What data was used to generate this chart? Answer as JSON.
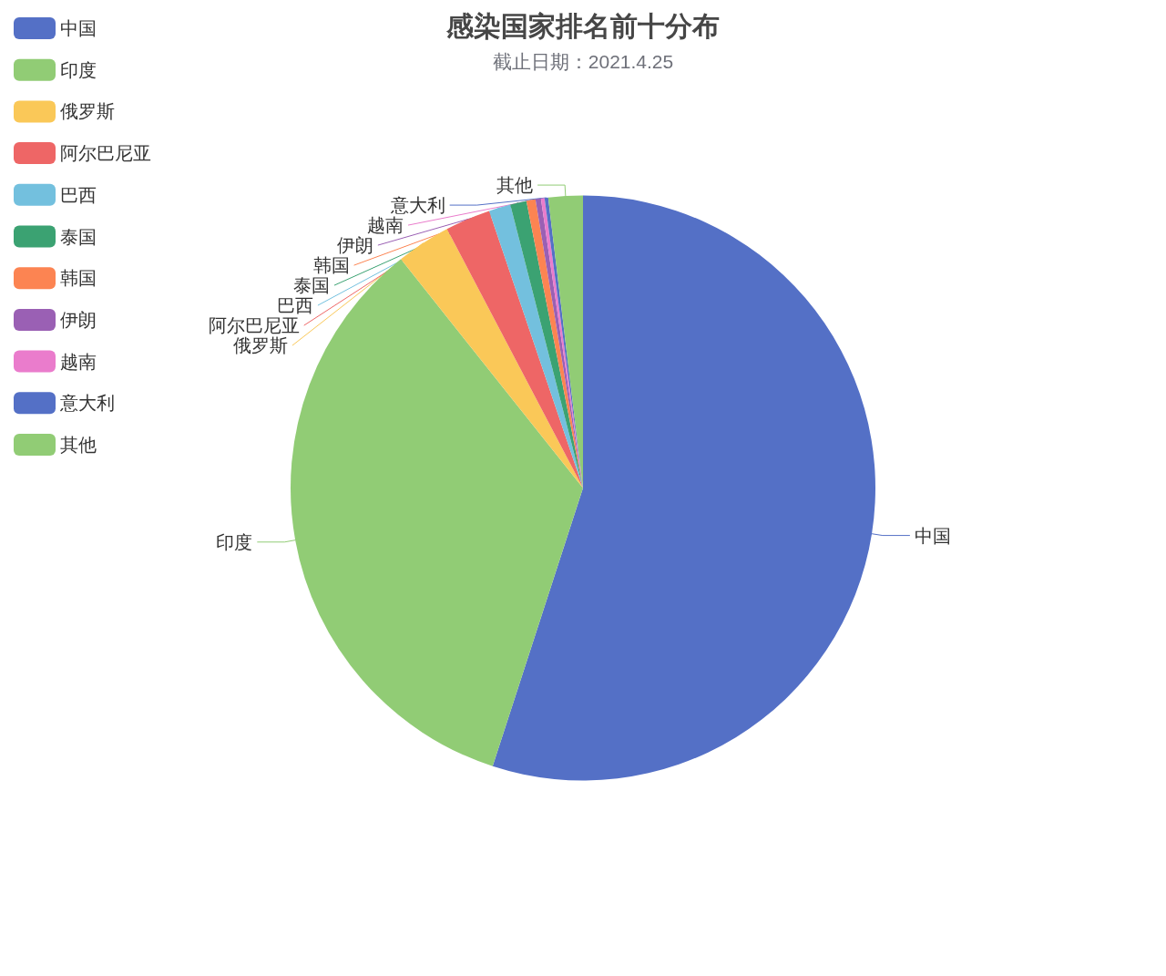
{
  "chart_data": {
    "type": "pie",
    "title": "感染国家排名前十分布",
    "subtitle": "截止日期：2021.4.25",
    "categories": [
      "中国",
      "印度",
      "俄罗斯",
      "阿尔巴尼亚",
      "巴西",
      "泰国",
      "韩国",
      "伊朗",
      "越南",
      "意大利",
      "其他"
    ],
    "values": [
      55,
      34.3,
      3,
      2.5,
      1.2,
      0.9,
      0.5,
      0.3,
      0.2,
      0.2,
      1.9
    ],
    "colors": [
      "#5470c6",
      "#91cc75",
      "#fac858",
      "#ee6666",
      "#73c0de",
      "#3ba272",
      "#fc8452",
      "#9a60b4",
      "#ea7ccc",
      "#5470c6",
      "#91cc75"
    ],
    "legend": "top left"
  }
}
